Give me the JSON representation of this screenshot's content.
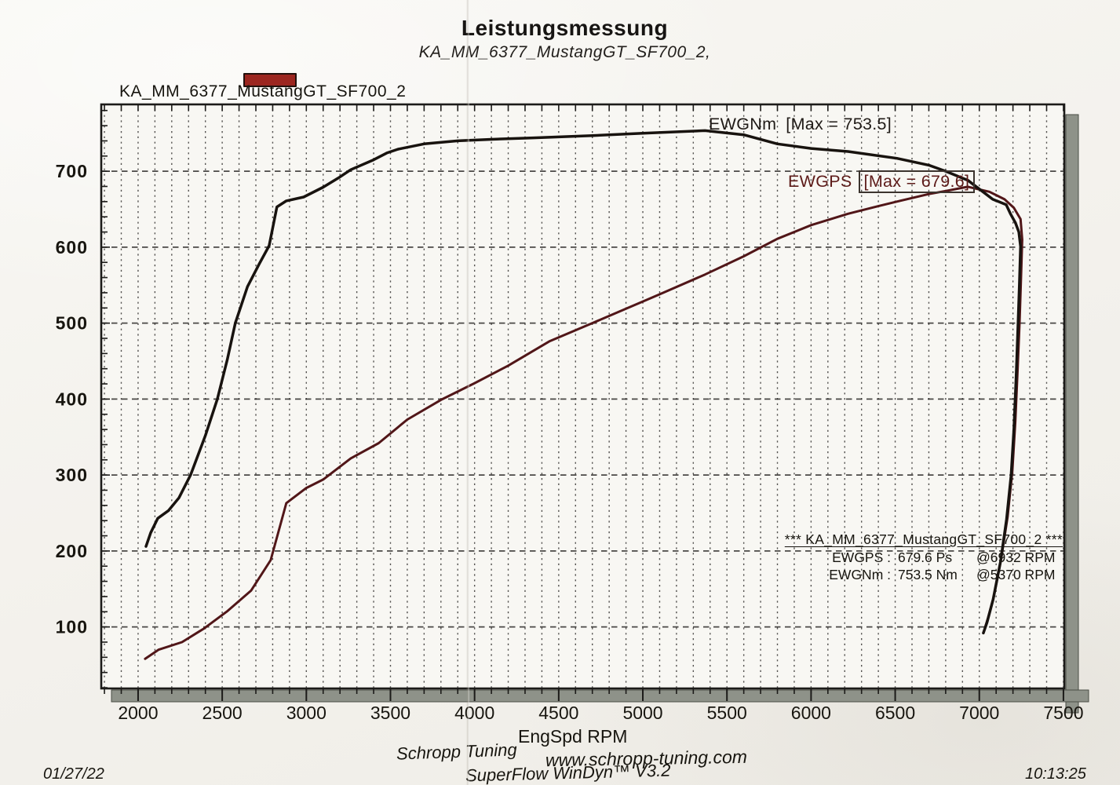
{
  "header": {
    "title": "Leistungsmessung",
    "subtitle": "KA_MM_6377_MustangGT_SF700_2,"
  },
  "legend": {
    "series_label": "KA_MM_6377_MustangGT_SF700_2",
    "swatch_color": "#9c2620"
  },
  "annotations": {
    "ewgnm_name": "EWGNm",
    "ewgnm_max": "[Max = 753.5]",
    "ewgps_name": "EWGPS",
    "ewgps_max": "[Max = 679.6]"
  },
  "info_box": {
    "heading": "*** KA_MM_6377_MustangGT_SF700_2 ***",
    "rows": [
      {
        "label": "EWGPS :",
        "value": "679.6 Ps",
        "at": "@6932 RPM"
      },
      {
        "label": "EWGNm :",
        "value": "753.5 Nm",
        "at": "@5370 RPM"
      }
    ]
  },
  "footer": {
    "company": "Schropp Tuning",
    "url": "www.schropp-tuning.com",
    "software": "SuperFlow WinDyn™ V3.2",
    "date": "01/27/22",
    "time": "10:13:25"
  },
  "chart_data": {
    "type": "line",
    "title": "Leistungsmessung",
    "xlabel": "EngSpd RPM",
    "ylabel": "",
    "xlim": [
      1781,
      7505
    ],
    "ylim": [
      19,
      788
    ],
    "x_ticks": [
      2000,
      2500,
      3000,
      3500,
      4000,
      4500,
      5000,
      5500,
      6000,
      6500,
      7000,
      7500
    ],
    "x_minor_step": 100,
    "y_ticks": [
      100,
      200,
      300,
      400,
      500,
      600,
      700
    ],
    "y_minor_step": 20,
    "grid": "dashed",
    "legend_position": "top-left",
    "series": [
      {
        "name": "EWGPS",
        "unit": "Ps",
        "max": 679.6,
        "max_at_rpm": 6932,
        "color": "#511618",
        "width": 3,
        "points": [
          [
            2042,
            58
          ],
          [
            2121,
            70
          ],
          [
            2261,
            80
          ],
          [
            2392,
            98
          ],
          [
            2532,
            121
          ],
          [
            2672,
            148
          ],
          [
            2788,
            188
          ],
          [
            2881,
            263
          ],
          [
            3000,
            283
          ],
          [
            3100,
            294
          ],
          [
            3264,
            322
          ],
          [
            3430,
            342
          ],
          [
            3600,
            373
          ],
          [
            3800,
            399
          ],
          [
            4000,
            421
          ],
          [
            4200,
            444
          ],
          [
            4444,
            476
          ],
          [
            4700,
            500
          ],
          [
            4900,
            519
          ],
          [
            5100,
            538
          ],
          [
            5370,
            564
          ],
          [
            5600,
            588
          ],
          [
            5800,
            611
          ],
          [
            6000,
            629
          ],
          [
            6220,
            644
          ],
          [
            6400,
            654
          ],
          [
            6510,
            660
          ],
          [
            6700,
            670
          ],
          [
            6800,
            674
          ],
          [
            6932,
            679.6
          ],
          [
            7060,
            673
          ],
          [
            7150,
            663
          ],
          [
            7205,
            652
          ],
          [
            7245,
            637
          ],
          [
            7255,
            610
          ],
          [
            7248,
            560
          ],
          [
            7239,
            500
          ],
          [
            7228,
            440
          ],
          [
            7214,
            370
          ],
          [
            7196,
            305
          ],
          [
            7168,
            245
          ],
          [
            7130,
            190
          ],
          [
            7086,
            140
          ],
          [
            7052,
            112
          ],
          [
            7034,
            99
          ]
        ]
      },
      {
        "name": "EWGNm",
        "unit": "Nm",
        "max": 753.5,
        "max_at_rpm": 5370,
        "color": "#18130f",
        "width": 3.5,
        "points": [
          [
            2047,
            206
          ],
          [
            2075,
            224
          ],
          [
            2117,
            243
          ],
          [
            2180,
            253
          ],
          [
            2243,
            270
          ],
          [
            2312,
            300
          ],
          [
            2400,
            352
          ],
          [
            2471,
            400
          ],
          [
            2530,
            452
          ],
          [
            2578,
            500
          ],
          [
            2650,
            548
          ],
          [
            2720,
            578
          ],
          [
            2779,
            602
          ],
          [
            2800,
            625
          ],
          [
            2825,
            653
          ],
          [
            2881,
            661
          ],
          [
            2984,
            666
          ],
          [
            3100,
            679
          ],
          [
            3190,
            691
          ],
          [
            3264,
            702
          ],
          [
            3400,
            715
          ],
          [
            3478,
            724
          ],
          [
            3544,
            729
          ],
          [
            3700,
            736
          ],
          [
            3900,
            740
          ],
          [
            4100,
            742
          ],
          [
            4350,
            744
          ],
          [
            4700,
            747
          ],
          [
            5000,
            750
          ],
          [
            5370,
            753.5
          ],
          [
            5600,
            748
          ],
          [
            5800,
            736
          ],
          [
            6000,
            730
          ],
          [
            6220,
            726
          ],
          [
            6510,
            717
          ],
          [
            6700,
            708
          ],
          [
            6800,
            700
          ],
          [
            6932,
            688
          ],
          [
            7080,
            663
          ],
          [
            7160,
            656
          ],
          [
            7185,
            644
          ],
          [
            7215,
            632
          ],
          [
            7235,
            620
          ],
          [
            7245,
            601
          ],
          [
            7238,
            550
          ],
          [
            7229,
            490
          ],
          [
            7219,
            430
          ],
          [
            7206,
            362
          ],
          [
            7189,
            300
          ],
          [
            7162,
            242
          ],
          [
            7126,
            186
          ],
          [
            7082,
            136
          ],
          [
            7046,
            106
          ],
          [
            7024,
            92
          ]
        ]
      }
    ]
  }
}
